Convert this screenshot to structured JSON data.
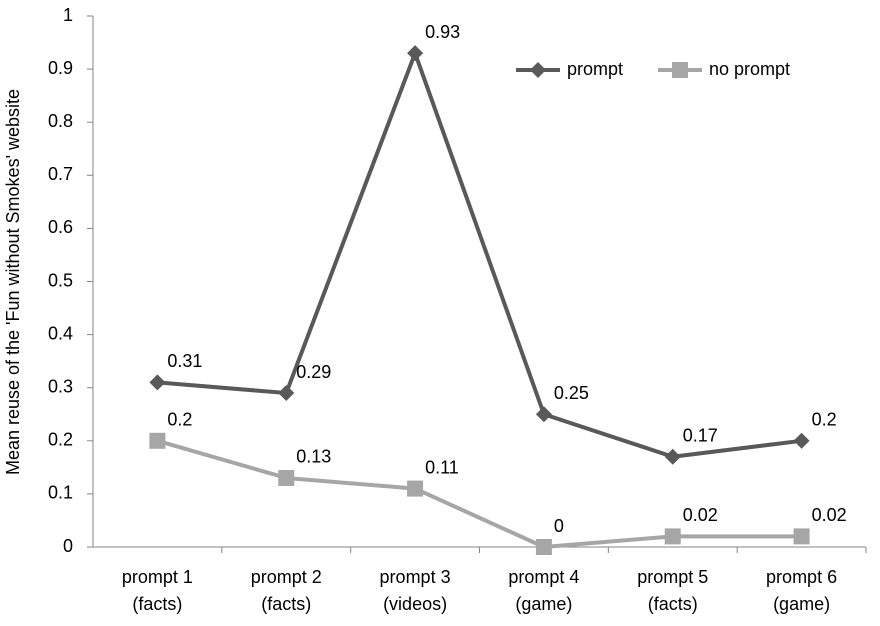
{
  "chart_data": {
    "type": "line",
    "y_label": "Mean reuse of the 'Fun without Smokes' website",
    "categories": [
      [
        "prompt 1",
        "(facts)"
      ],
      [
        "prompt 2",
        "(facts)"
      ],
      [
        "prompt 3",
        "(videos)"
      ],
      [
        "prompt 4",
        "(game)"
      ],
      [
        "prompt 5",
        "(facts)"
      ],
      [
        "prompt 6",
        "(game)"
      ]
    ],
    "series": [
      {
        "name": "prompt",
        "color": "#595959",
        "marker": "diamond",
        "values": [
          0.31,
          0.29,
          0.93,
          0.25,
          0.17,
          0.2
        ]
      },
      {
        "name": "no prompt",
        "color": "#a6a6a6",
        "marker": "square",
        "values": [
          0.2,
          0.13,
          0.11,
          0,
          0.02,
          0.02
        ]
      }
    ],
    "ylim": [
      0,
      1
    ],
    "yticks": [
      0,
      0.1,
      0.2,
      0.3,
      0.4,
      0.5,
      0.6,
      0.7,
      0.8,
      0.9,
      1
    ],
    "grid": false,
    "legend": "top-right"
  }
}
